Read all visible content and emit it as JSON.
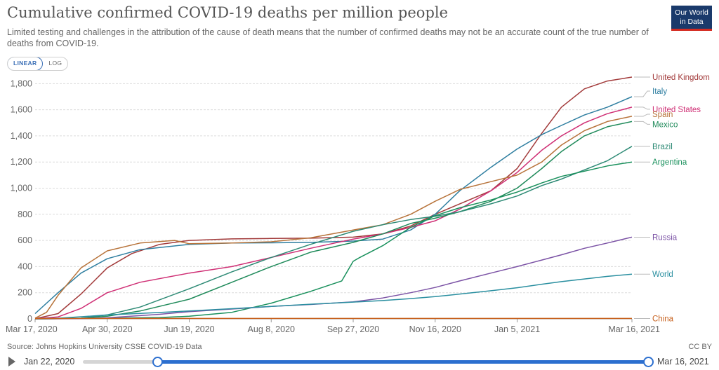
{
  "header": {
    "title": "Cumulative confirmed COVID-19 deaths per million people",
    "subtitle": "Limited testing and challenges in the attribution of the cause of death means that the number of confirmed deaths may not be an accurate count of the true number of deaths from COVID-19.",
    "logo_line1": "Our World",
    "logo_line2": "in Data"
  },
  "controls": {
    "linear_label": "LINEAR",
    "log_label": "LOG",
    "selected": "LINEAR"
  },
  "footer": {
    "source": "Source: Johns Hopkins University CSSE COVID-19 Data",
    "license": "CC BY"
  },
  "timeline": {
    "start_label": "Jan 22, 2020",
    "end_label": "Mar 16, 2021",
    "range_start": "Mar 17, 2020",
    "range_end": "Mar 16, 2021"
  },
  "chart_data": {
    "type": "line",
    "title": "Cumulative confirmed COVID-19 deaths per million people",
    "x_tick_labels": [
      "Mar 17, 2020",
      "Apr 30, 2020",
      "Jun 19, 2020",
      "Aug 8, 2020",
      "Sep 27, 2020",
      "Nov 16, 2020",
      "Jan 5, 2021",
      "Mar 16, 2021"
    ],
    "x_ticks": [
      "2020-03-17",
      "2020-04-30",
      "2020-06-19",
      "2020-08-08",
      "2020-09-27",
      "2020-11-16",
      "2021-01-05",
      "2021-03-16"
    ],
    "xlim": [
      "2020-03-17",
      "2021-03-16"
    ],
    "ylim": [
      0,
      1850
    ],
    "y_ticks": [
      0,
      200,
      400,
      600,
      800,
      1000,
      1200,
      1400,
      1600,
      1800
    ],
    "y_tick_labels": [
      "0",
      "200",
      "400",
      "600",
      "800",
      "1,000",
      "1,200",
      "1,400",
      "1,600",
      "1,800"
    ],
    "grid": "horizontal dashed",
    "legend": "right, labels at line ends",
    "series": [
      {
        "name": "United Kingdom",
        "color": "#a23a3a",
        "points": [
          [
            "2020-03-17",
            1
          ],
          [
            "2020-03-31",
            40
          ],
          [
            "2020-04-14",
            190
          ],
          [
            "2020-04-30",
            390
          ],
          [
            "2020-05-15",
            500
          ],
          [
            "2020-06-01",
            570
          ],
          [
            "2020-06-19",
            600
          ],
          [
            "2020-07-15",
            612
          ],
          [
            "2020-08-08",
            615
          ],
          [
            "2020-09-01",
            617
          ],
          [
            "2020-09-27",
            625
          ],
          [
            "2020-10-15",
            650
          ],
          [
            "2020-11-01",
            710
          ],
          [
            "2020-11-16",
            800
          ],
          [
            "2020-12-01",
            880
          ],
          [
            "2020-12-20",
            980
          ],
          [
            "2021-01-05",
            1150
          ],
          [
            "2021-01-20",
            1420
          ],
          [
            "2021-02-01",
            1620
          ],
          [
            "2021-02-15",
            1760
          ],
          [
            "2021-03-01",
            1820
          ],
          [
            "2021-03-16",
            1850
          ]
        ]
      },
      {
        "name": "Italy",
        "color": "#2e7ea0",
        "points": [
          [
            "2020-03-17",
            40
          ],
          [
            "2020-03-31",
            200
          ],
          [
            "2020-04-14",
            350
          ],
          [
            "2020-04-30",
            460
          ],
          [
            "2020-05-20",
            530
          ],
          [
            "2020-06-19",
            570
          ],
          [
            "2020-07-15",
            580
          ],
          [
            "2020-08-08",
            582
          ],
          [
            "2020-09-01",
            585
          ],
          [
            "2020-09-27",
            595
          ],
          [
            "2020-10-15",
            610
          ],
          [
            "2020-11-01",
            680
          ],
          [
            "2020-11-16",
            800
          ],
          [
            "2020-12-01",
            980
          ],
          [
            "2020-12-20",
            1160
          ],
          [
            "2021-01-05",
            1300
          ],
          [
            "2021-01-20",
            1410
          ],
          [
            "2021-02-01",
            1480
          ],
          [
            "2021-02-15",
            1560
          ],
          [
            "2021-03-01",
            1620
          ],
          [
            "2021-03-16",
            1700
          ]
        ]
      },
      {
        "name": "United States",
        "color": "#cf2f75",
        "points": [
          [
            "2020-03-17",
            1
          ],
          [
            "2020-03-31",
            15
          ],
          [
            "2020-04-14",
            80
          ],
          [
            "2020-04-30",
            200
          ],
          [
            "2020-05-20",
            280
          ],
          [
            "2020-06-19",
            350
          ],
          [
            "2020-07-15",
            400
          ],
          [
            "2020-08-08",
            470
          ],
          [
            "2020-09-01",
            540
          ],
          [
            "2020-09-27",
            610
          ],
          [
            "2020-10-15",
            650
          ],
          [
            "2020-11-01",
            700
          ],
          [
            "2020-11-16",
            750
          ],
          [
            "2020-12-01",
            840
          ],
          [
            "2020-12-20",
            980
          ],
          [
            "2021-01-05",
            1120
          ],
          [
            "2021-01-20",
            1290
          ],
          [
            "2021-02-01",
            1400
          ],
          [
            "2021-02-15",
            1500
          ],
          [
            "2021-03-01",
            1570
          ],
          [
            "2021-03-16",
            1620
          ]
        ]
      },
      {
        "name": "Spain",
        "color": "#b7733a",
        "points": [
          [
            "2020-03-17",
            5
          ],
          [
            "2020-03-24",
            50
          ],
          [
            "2020-03-31",
            180
          ],
          [
            "2020-04-14",
            390
          ],
          [
            "2020-04-30",
            520
          ],
          [
            "2020-05-20",
            580
          ],
          [
            "2020-06-10",
            600
          ],
          [
            "2020-06-19",
            575
          ],
          [
            "2020-07-15",
            580
          ],
          [
            "2020-08-08",
            590
          ],
          [
            "2020-09-01",
            620
          ],
          [
            "2020-09-27",
            680
          ],
          [
            "2020-10-15",
            720
          ],
          [
            "2020-11-01",
            800
          ],
          [
            "2020-11-16",
            900
          ],
          [
            "2020-12-01",
            990
          ],
          [
            "2020-12-20",
            1050
          ],
          [
            "2021-01-05",
            1100
          ],
          [
            "2021-01-20",
            1200
          ],
          [
            "2021-02-01",
            1330
          ],
          [
            "2021-02-15",
            1440
          ],
          [
            "2021-03-01",
            1510
          ],
          [
            "2021-03-16",
            1550
          ]
        ]
      },
      {
        "name": "Mexico",
        "color": "#1f8a5a",
        "points": [
          [
            "2020-03-17",
            0
          ],
          [
            "2020-03-31",
            1
          ],
          [
            "2020-04-14",
            5
          ],
          [
            "2020-04-30",
            20
          ],
          [
            "2020-05-20",
            60
          ],
          [
            "2020-06-19",
            150
          ],
          [
            "2020-07-15",
            280
          ],
          [
            "2020-08-08",
            400
          ],
          [
            "2020-09-01",
            510
          ],
          [
            "2020-09-27",
            585
          ],
          [
            "2020-10-15",
            650
          ],
          [
            "2020-11-01",
            730
          ],
          [
            "2020-11-16",
            770
          ],
          [
            "2020-12-01",
            820
          ],
          [
            "2020-12-20",
            900
          ],
          [
            "2021-01-05",
            1000
          ],
          [
            "2021-01-20",
            1150
          ],
          [
            "2021-02-01",
            1280
          ],
          [
            "2021-02-15",
            1400
          ],
          [
            "2021-03-01",
            1470
          ],
          [
            "2021-03-16",
            1510
          ]
        ]
      },
      {
        "name": "Brazil",
        "color": "#2d8a75",
        "points": [
          [
            "2020-03-17",
            0
          ],
          [
            "2020-03-31",
            1
          ],
          [
            "2020-04-14",
            5
          ],
          [
            "2020-04-30",
            30
          ],
          [
            "2020-05-20",
            90
          ],
          [
            "2020-06-19",
            230
          ],
          [
            "2020-07-15",
            360
          ],
          [
            "2020-08-08",
            470
          ],
          [
            "2020-09-01",
            570
          ],
          [
            "2020-09-27",
            670
          ],
          [
            "2020-10-15",
            720
          ],
          [
            "2020-11-01",
            760
          ],
          [
            "2020-11-16",
            785
          ],
          [
            "2020-12-01",
            820
          ],
          [
            "2020-12-20",
            880
          ],
          [
            "2021-01-05",
            940
          ],
          [
            "2021-01-20",
            1020
          ],
          [
            "2021-02-01",
            1070
          ],
          [
            "2021-02-15",
            1140
          ],
          [
            "2021-03-01",
            1210
          ],
          [
            "2021-03-16",
            1320
          ]
        ]
      },
      {
        "name": "Argentina",
        "color": "#19905c",
        "points": [
          [
            "2020-03-17",
            0
          ],
          [
            "2020-04-14",
            2
          ],
          [
            "2020-04-30",
            5
          ],
          [
            "2020-06-01",
            10
          ],
          [
            "2020-06-19",
            20
          ],
          [
            "2020-07-15",
            50
          ],
          [
            "2020-08-08",
            120
          ],
          [
            "2020-09-01",
            210
          ],
          [
            "2020-09-20",
            290
          ],
          [
            "2020-09-27",
            440
          ],
          [
            "2020-10-01",
            470
          ],
          [
            "2020-10-15",
            560
          ],
          [
            "2020-11-01",
            700
          ],
          [
            "2020-11-16",
            790
          ],
          [
            "2020-12-01",
            850
          ],
          [
            "2020-12-20",
            910
          ],
          [
            "2021-01-05",
            970
          ],
          [
            "2021-01-20",
            1040
          ],
          [
            "2021-02-01",
            1090
          ],
          [
            "2021-02-15",
            1130
          ],
          [
            "2021-03-01",
            1170
          ],
          [
            "2021-03-16",
            1200
          ]
        ]
      },
      {
        "name": "Russia",
        "color": "#7b52a5",
        "points": [
          [
            "2020-03-17",
            0
          ],
          [
            "2020-04-14",
            1
          ],
          [
            "2020-04-30",
            8
          ],
          [
            "2020-06-01",
            35
          ],
          [
            "2020-06-19",
            55
          ],
          [
            "2020-07-15",
            75
          ],
          [
            "2020-08-08",
            95
          ],
          [
            "2020-09-01",
            110
          ],
          [
            "2020-09-27",
            130
          ],
          [
            "2020-10-15",
            160
          ],
          [
            "2020-11-01",
            200
          ],
          [
            "2020-11-16",
            240
          ],
          [
            "2020-12-01",
            290
          ],
          [
            "2020-12-20",
            350
          ],
          [
            "2021-01-05",
            400
          ],
          [
            "2021-01-20",
            450
          ],
          [
            "2021-02-01",
            490
          ],
          [
            "2021-02-15",
            540
          ],
          [
            "2021-03-01",
            580
          ],
          [
            "2021-03-16",
            625
          ]
        ]
      },
      {
        "name": "World",
        "color": "#2a8fa0",
        "points": [
          [
            "2020-03-17",
            1
          ],
          [
            "2020-03-31",
            5
          ],
          [
            "2020-04-14",
            16
          ],
          [
            "2020-04-30",
            30
          ],
          [
            "2020-05-20",
            42
          ],
          [
            "2020-06-19",
            60
          ],
          [
            "2020-07-15",
            78
          ],
          [
            "2020-08-08",
            95
          ],
          [
            "2020-09-01",
            112
          ],
          [
            "2020-09-27",
            128
          ],
          [
            "2020-10-15",
            140
          ],
          [
            "2020-11-01",
            155
          ],
          [
            "2020-11-16",
            170
          ],
          [
            "2020-12-01",
            190
          ],
          [
            "2020-12-20",
            215
          ],
          [
            "2021-01-05",
            238
          ],
          [
            "2021-01-20",
            265
          ],
          [
            "2021-02-01",
            285
          ],
          [
            "2021-02-15",
            305
          ],
          [
            "2021-03-01",
            325
          ],
          [
            "2021-03-16",
            342
          ]
        ]
      },
      {
        "name": "China",
        "color": "#c7611e",
        "points": [
          [
            "2020-03-17",
            2
          ],
          [
            "2020-04-17",
            3
          ],
          [
            "2021-03-16",
            3
          ]
        ]
      }
    ]
  }
}
